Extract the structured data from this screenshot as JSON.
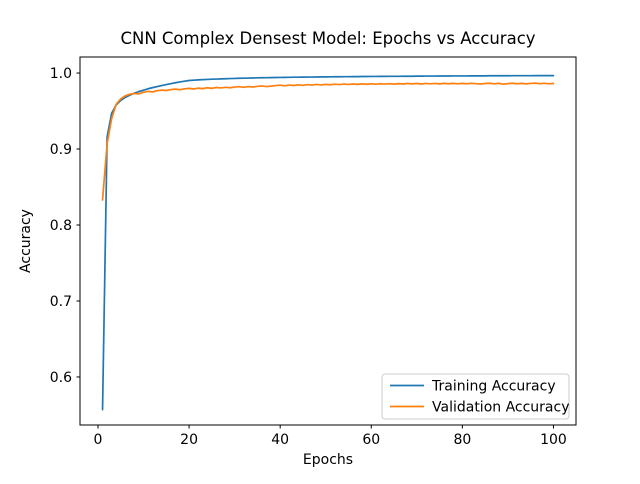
{
  "chart_data": {
    "type": "line",
    "title": "CNN Complex Densest Model: Epochs vs Accuracy",
    "xlabel": "Epochs",
    "ylabel": "Accuracy",
    "xlim": [
      -3.95,
      104.95
    ],
    "ylim": [
      0.5368,
      1.0211
    ],
    "grid": false,
    "background_color": "#ffffff",
    "xticks": {
      "values": [
        0,
        20,
        40,
        60,
        80,
        100
      ],
      "labels": [
        "0",
        "20",
        "40",
        "60",
        "80",
        "100"
      ]
    },
    "yticks": {
      "values": [
        0.6,
        0.7,
        0.8,
        0.9,
        1.0
      ],
      "labels": [
        "0.6",
        "0.7",
        "0.8",
        "0.9",
        "1.0"
      ]
    },
    "legend": {
      "position": "lower right",
      "entries": [
        "Training Accuracy",
        "Validation Accuracy"
      ]
    },
    "x": [
      1,
      2,
      3,
      4,
      5,
      6,
      7,
      8,
      9,
      10,
      11,
      12,
      13,
      14,
      15,
      16,
      17,
      18,
      19,
      20,
      21,
      22,
      23,
      24,
      25,
      26,
      27,
      28,
      29,
      30,
      31,
      32,
      33,
      34,
      35,
      36,
      37,
      38,
      39,
      40,
      41,
      42,
      43,
      44,
      45,
      46,
      47,
      48,
      49,
      50,
      51,
      52,
      53,
      54,
      55,
      56,
      57,
      58,
      59,
      60,
      61,
      62,
      63,
      64,
      65,
      66,
      67,
      68,
      69,
      70,
      71,
      72,
      73,
      74,
      75,
      76,
      77,
      78,
      79,
      80,
      81,
      82,
      83,
      84,
      85,
      86,
      87,
      88,
      89,
      90,
      91,
      92,
      93,
      94,
      95,
      96,
      97,
      98,
      99,
      100
    ],
    "series": [
      {
        "name": "Training Accuracy",
        "color": "#1f77b4",
        "values": [
          0.557,
          0.916,
          0.947,
          0.958,
          0.964,
          0.968,
          0.971,
          0.9735,
          0.9757,
          0.9775,
          0.9793,
          0.9808,
          0.9822,
          0.9835,
          0.9848,
          0.986,
          0.9872,
          0.9883,
          0.9893,
          0.9902,
          0.9906,
          0.991,
          0.9913,
          0.9916,
          0.9919,
          0.9921,
          0.9923,
          0.9925,
          0.9927,
          0.9929,
          0.9931,
          0.9932,
          0.9934,
          0.9935,
          0.9937,
          0.9938,
          0.9939,
          0.994,
          0.9941,
          0.9942,
          0.9943,
          0.9944,
          0.9945,
          0.9945,
          0.9946,
          0.9947,
          0.9947,
          0.9948,
          0.9949,
          0.9949,
          0.995,
          0.9951,
          0.9951,
          0.9952,
          0.9952,
          0.9953,
          0.9953,
          0.9954,
          0.9954,
          0.9955,
          0.9955,
          0.9956,
          0.9956,
          0.9957,
          0.9957,
          0.9957,
          0.9958,
          0.9958,
          0.9958,
          0.9959,
          0.9959,
          0.996,
          0.996,
          0.996,
          0.9961,
          0.9961,
          0.9961,
          0.9962,
          0.9962,
          0.9962,
          0.9962,
          0.9963,
          0.9963,
          0.9963,
          0.9963,
          0.9964,
          0.9964,
          0.9964,
          0.9964,
          0.9964,
          0.9965,
          0.9965,
          0.9965,
          0.9965,
          0.9965,
          0.9966,
          0.9966,
          0.9966,
          0.9966,
          0.9966
        ]
      },
      {
        "name": "Validation Accuracy",
        "color": "#ff7f0e",
        "values": [
          0.833,
          0.907,
          0.94,
          0.959,
          0.966,
          0.97,
          0.9722,
          0.973,
          0.9726,
          0.9748,
          0.9758,
          0.9752,
          0.9768,
          0.9775,
          0.977,
          0.9782,
          0.9788,
          0.978,
          0.9792,
          0.9798,
          0.979,
          0.9801,
          0.9795,
          0.9806,
          0.9798,
          0.981,
          0.9804,
          0.9812,
          0.9806,
          0.9815,
          0.982,
          0.9812,
          0.9822,
          0.9816,
          0.9825,
          0.983,
          0.9822,
          0.9828,
          0.9835,
          0.984,
          0.9832,
          0.9842,
          0.9836,
          0.9845,
          0.9838,
          0.9847,
          0.9842,
          0.985,
          0.9843,
          0.9851,
          0.9846,
          0.9853,
          0.9848,
          0.9855,
          0.985,
          0.9856,
          0.9851,
          0.9857,
          0.9852,
          0.9858,
          0.9853,
          0.9859,
          0.9855,
          0.986,
          0.9854,
          0.9861,
          0.9856,
          0.9862,
          0.9857,
          0.9862,
          0.9856,
          0.9863,
          0.9858,
          0.9863,
          0.9857,
          0.9864,
          0.9859,
          0.9864,
          0.9858,
          0.9864,
          0.9859,
          0.9865,
          0.986,
          0.9855,
          0.9862,
          0.9866,
          0.9858,
          0.9864,
          0.9853,
          0.9861,
          0.9866,
          0.9859,
          0.9864,
          0.9857,
          0.9863,
          0.9867,
          0.986,
          0.9865,
          0.9858,
          0.9862
        ]
      }
    ]
  }
}
